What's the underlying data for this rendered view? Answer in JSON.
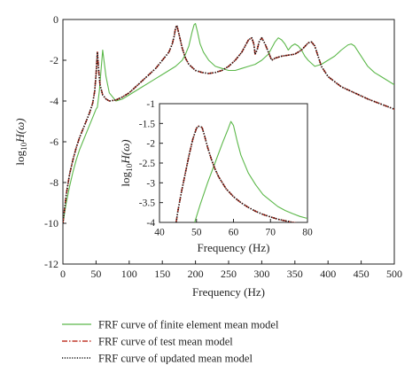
{
  "chart_data": [
    {
      "type": "line",
      "role": "main",
      "xlabel": "Frequency (Hz)",
      "ylabel_prefix": "log",
      "ylabel_sub": "10",
      "ylabel_suffix": "H(ω)",
      "xlim": [
        0,
        500
      ],
      "ylim": [
        -12,
        0
      ],
      "xticks": [
        "0",
        "50",
        "100",
        "150",
        "200",
        "250",
        "300",
        "350",
        "400",
        "450",
        "500"
      ],
      "yticks": [
        "0",
        "-2",
        "-4",
        "-6",
        "-8",
        "-10",
        "-12"
      ],
      "series": [
        {
          "key": "fe",
          "color": "#5cb84a",
          "x": [
            0,
            5,
            10,
            15,
            20,
            25,
            30,
            35,
            40,
            45,
            50,
            52,
            55,
            58,
            60,
            65,
            70,
            80,
            90,
            100,
            110,
            120,
            130,
            140,
            150,
            160,
            170,
            180,
            185,
            190,
            195,
            198,
            200,
            203,
            207,
            212,
            220,
            230,
            240,
            250,
            260,
            270,
            280,
            290,
            300,
            310,
            315,
            320,
            325,
            330,
            335,
            340,
            345,
            350,
            355,
            360,
            365,
            370,
            380,
            390,
            400,
            410,
            420,
            430,
            435,
            440,
            450,
            460,
            470,
            480,
            490,
            500
          ],
          "y": [
            -10.0,
            -9.0,
            -8.2,
            -7.5,
            -6.9,
            -6.4,
            -6.0,
            -5.6,
            -5.2,
            -4.8,
            -4.4,
            -4.3,
            -3.5,
            -2.3,
            -1.5,
            -2.8,
            -3.6,
            -4.0,
            -3.9,
            -3.7,
            -3.5,
            -3.3,
            -3.1,
            -2.9,
            -2.7,
            -2.5,
            -2.3,
            -2.0,
            -1.7,
            -1.3,
            -0.6,
            -0.25,
            -0.2,
            -0.6,
            -1.2,
            -1.6,
            -2.0,
            -2.3,
            -2.4,
            -2.5,
            -2.5,
            -2.4,
            -2.3,
            -2.2,
            -2.0,
            -1.7,
            -1.4,
            -1.1,
            -0.9,
            -1.0,
            -1.2,
            -1.5,
            -1.3,
            -1.2,
            -1.3,
            -1.5,
            -1.8,
            -2.0,
            -2.3,
            -2.2,
            -2.0,
            -1.8,
            -1.5,
            -1.25,
            -1.2,
            -1.3,
            -1.8,
            -2.3,
            -2.6,
            -2.8,
            -3.0,
            -3.2
          ]
        },
        {
          "key": "test",
          "color": "#c0392b",
          "x": [
            0,
            5,
            10,
            15,
            20,
            25,
            30,
            35,
            40,
            45,
            48,
            50,
            52,
            54,
            56,
            60,
            65,
            70,
            80,
            90,
            100,
            110,
            120,
            130,
            140,
            150,
            160,
            165,
            168,
            170,
            172,
            175,
            180,
            185,
            190,
            200,
            210,
            220,
            230,
            240,
            250,
            260,
            270,
            280,
            285,
            288,
            290,
            293,
            296,
            300,
            305,
            310,
            315,
            320,
            330,
            340,
            350,
            360,
            370,
            375,
            380,
            385,
            390,
            400,
            420,
            440,
            460,
            480,
            500
          ],
          "y": [
            -10.0,
            -8.6,
            -7.6,
            -6.9,
            -6.3,
            -5.8,
            -5.4,
            -5.0,
            -4.6,
            -4.1,
            -3.5,
            -2.7,
            -1.6,
            -2.5,
            -3.2,
            -3.7,
            -3.9,
            -4.0,
            -3.95,
            -3.8,
            -3.6,
            -3.3,
            -3.0,
            -2.7,
            -2.4,
            -2.0,
            -1.6,
            -1.2,
            -0.8,
            -0.4,
            -0.3,
            -0.7,
            -1.4,
            -1.9,
            -2.2,
            -2.5,
            -2.6,
            -2.65,
            -2.6,
            -2.5,
            -2.3,
            -2.0,
            -1.6,
            -1.0,
            -0.9,
            -1.2,
            -1.7,
            -1.5,
            -1.1,
            -0.9,
            -1.2,
            -1.6,
            -2.0,
            -1.9,
            -1.8,
            -1.75,
            -1.7,
            -1.5,
            -1.15,
            -1.1,
            -1.3,
            -1.8,
            -2.3,
            -2.8,
            -3.3,
            -3.6,
            -3.9,
            -4.15,
            -4.4
          ]
        },
        {
          "key": "updated",
          "color": "#111111",
          "x": [
            0,
            5,
            10,
            15,
            20,
            25,
            30,
            35,
            40,
            45,
            48,
            50,
            52,
            54,
            56,
            60,
            65,
            70,
            80,
            90,
            100,
            110,
            120,
            130,
            140,
            150,
            160,
            165,
            168,
            170,
            172,
            175,
            180,
            185,
            190,
            200,
            210,
            220,
            230,
            240,
            250,
            260,
            270,
            280,
            285,
            288,
            290,
            293,
            296,
            300,
            305,
            310,
            315,
            320,
            330,
            340,
            350,
            360,
            370,
            375,
            380,
            385,
            390,
            400,
            420,
            440,
            460,
            480,
            500
          ],
          "y": [
            -10.0,
            -8.6,
            -7.6,
            -6.9,
            -6.3,
            -5.8,
            -5.4,
            -5.0,
            -4.6,
            -4.1,
            -3.5,
            -2.7,
            -1.6,
            -2.5,
            -3.2,
            -3.7,
            -3.9,
            -4.0,
            -3.95,
            -3.8,
            -3.6,
            -3.3,
            -3.0,
            -2.7,
            -2.4,
            -2.0,
            -1.6,
            -1.2,
            -0.8,
            -0.4,
            -0.3,
            -0.7,
            -1.4,
            -1.9,
            -2.2,
            -2.5,
            -2.6,
            -2.65,
            -2.6,
            -2.5,
            -2.3,
            -2.0,
            -1.6,
            -1.0,
            -0.9,
            -1.2,
            -1.7,
            -1.5,
            -1.1,
            -0.9,
            -1.2,
            -1.6,
            -2.0,
            -1.9,
            -1.8,
            -1.75,
            -1.7,
            -1.5,
            -1.15,
            -1.1,
            -1.3,
            -1.8,
            -2.3,
            -2.8,
            -3.3,
            -3.6,
            -3.9,
            -4.15,
            -4.4
          ]
        }
      ]
    },
    {
      "type": "line",
      "role": "inset",
      "xlabel": "Frequency (Hz)",
      "ylabel_prefix": "log",
      "ylabel_sub": "10",
      "ylabel_suffix": "H(ω)",
      "xlim": [
        40,
        80
      ],
      "ylim": [
        -4,
        -1
      ],
      "xticks": [
        "40",
        "50",
        "60",
        "70",
        "80"
      ],
      "yticks": [
        "-1",
        "-1.5",
        "-2",
        "-2.5",
        "-3",
        "-3.5",
        "-4"
      ],
      "series": [
        {
          "key": "fe",
          "color": "#5cb84a",
          "x": [
            49.5,
            51,
            53,
            55,
            57,
            58.5,
            59.3,
            60,
            61,
            62,
            64,
            66,
            68,
            70,
            72,
            74,
            76,
            78,
            80
          ],
          "y": [
            -4.0,
            -3.55,
            -3.0,
            -2.5,
            -2.0,
            -1.65,
            -1.45,
            -1.55,
            -1.95,
            -2.3,
            -2.75,
            -3.05,
            -3.3,
            -3.45,
            -3.6,
            -3.7,
            -3.78,
            -3.85,
            -3.9
          ]
        },
        {
          "key": "test",
          "color": "#c0392b",
          "x": [
            44.5,
            45,
            46,
            47,
            48,
            49,
            50,
            50.5,
            51,
            51.5,
            52,
            53,
            54,
            55,
            56,
            58,
            60,
            62,
            64,
            66,
            68,
            70,
            72,
            74,
            76,
            78,
            80
          ],
          "y": [
            -4.0,
            -3.7,
            -3.2,
            -2.75,
            -2.3,
            -1.9,
            -1.62,
            -1.57,
            -1.58,
            -1.6,
            -1.75,
            -2.1,
            -2.4,
            -2.65,
            -2.85,
            -3.15,
            -3.35,
            -3.5,
            -3.62,
            -3.72,
            -3.8,
            -3.86,
            -3.92,
            -3.96,
            -4.0,
            -4.03,
            -4.06
          ]
        },
        {
          "key": "updated",
          "color": "#111111",
          "x": [
            44.5,
            45,
            46,
            47,
            48,
            49,
            50,
            50.5,
            51,
            51.5,
            52,
            53,
            54,
            55,
            56,
            58,
            60,
            62,
            64,
            66,
            68,
            70,
            72,
            74,
            76,
            78,
            80
          ],
          "y": [
            -4.0,
            -3.7,
            -3.2,
            -2.75,
            -2.3,
            -1.9,
            -1.62,
            -1.57,
            -1.58,
            -1.6,
            -1.75,
            -2.1,
            -2.4,
            -2.65,
            -2.85,
            -3.15,
            -3.35,
            -3.5,
            -3.62,
            -3.72,
            -3.8,
            -3.86,
            -3.92,
            -3.96,
            -4.0,
            -4.03,
            -4.06
          ]
        }
      ]
    }
  ],
  "legend": [
    {
      "key": "fe",
      "label": "FRF curve of finite element mean model",
      "color": "#5cb84a",
      "style": "solid"
    },
    {
      "key": "test",
      "label": "FRF curve of test mean model",
      "color": "#c0392b",
      "style": "dashdot"
    },
    {
      "key": "updated",
      "label": "FRF curve of updated mean model",
      "color": "#111111",
      "style": "dotted"
    }
  ]
}
